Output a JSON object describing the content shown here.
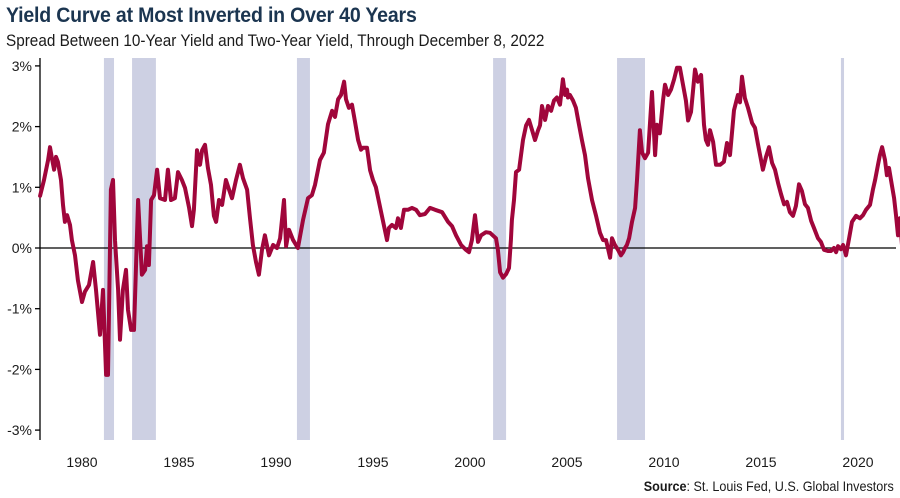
{
  "header": {
    "title": "Yield Curve at Most Inverted in Over 40 Years",
    "subtitle": "Spread Between 10-Year Yield and Two-Year Yield, Through December 8, 2022"
  },
  "footer": {
    "source_label": "Source",
    "source_text": ": St. Louis Fed, U.S. Global Investors"
  },
  "colors": {
    "line": "#a0063b",
    "recession": "#cdd0e3",
    "axis": "#000000",
    "title": "#1b3550"
  },
  "chart_data": {
    "type": "line",
    "title": "Yield Curve at Most Inverted in Over 40 Years",
    "subtitle": "Spread Between 10-Year Yield and Two-Year Yield, Through December 8, 2022",
    "xlabel": "",
    "ylabel": "",
    "xlim": [
      1977.84,
      2022.94
    ],
    "ylim": [
      -3.2,
      3.1
    ],
    "x_ticks": [
      1980,
      1985,
      1990,
      1995,
      2000,
      2005,
      2010,
      2015,
      2020
    ],
    "x_tick_labels": [
      "1980",
      "1985",
      "1990",
      "1995",
      "2000",
      "2005",
      "2010",
      "2015",
      "2020"
    ],
    "y_ticks": [
      3,
      2,
      1,
      0,
      -1,
      -2,
      -3
    ],
    "y_tick_labels": [
      "3%",
      "2%",
      "1%",
      "0%",
      "-1%",
      "-2%",
      "-3%"
    ],
    "grid": false,
    "zero_line": true,
    "legend": "none",
    "shaded_periods": [
      {
        "start": 1981.13,
        "end": 1981.65
      },
      {
        "start": 1982.58,
        "end": 1983.81
      },
      {
        "start": 1991.08,
        "end": 1991.75
      },
      {
        "start": 2001.19,
        "end": 2001.86
      },
      {
        "start": 2007.58,
        "end": 2009.02
      },
      {
        "start": 2019.12,
        "end": 2019.28
      }
    ],
    "series": [
      {
        "name": "10-Year minus 2-Year Treasury Spread (%)",
        "points": [
          [
            1977.84,
            0.86
          ],
          [
            1978.04,
            1.12
          ],
          [
            1978.25,
            1.45
          ],
          [
            1978.35,
            1.66
          ],
          [
            1978.45,
            1.48
          ],
          [
            1978.56,
            1.29
          ],
          [
            1978.66,
            1.5
          ],
          [
            1978.76,
            1.42
          ],
          [
            1978.92,
            1.12
          ],
          [
            1979.02,
            0.71
          ],
          [
            1979.12,
            0.43
          ],
          [
            1979.23,
            0.54
          ],
          [
            1979.38,
            0.38
          ],
          [
            1979.48,
            0.13
          ],
          [
            1979.64,
            -0.12
          ],
          [
            1979.79,
            -0.53
          ],
          [
            1980.0,
            -0.89
          ],
          [
            1980.15,
            -0.72
          ],
          [
            1980.36,
            -0.61
          ],
          [
            1980.57,
            -0.23
          ],
          [
            1980.72,
            -0.69
          ],
          [
            1980.93,
            -1.43
          ],
          [
            1981.08,
            -0.69
          ],
          [
            1981.24,
            -2.09
          ],
          [
            1981.34,
            -2.09
          ],
          [
            1981.49,
            0.96
          ],
          [
            1981.6,
            1.12
          ],
          [
            1981.7,
            0.13
          ],
          [
            1981.86,
            -0.69
          ],
          [
            1981.96,
            -1.51
          ],
          [
            1982.11,
            -0.69
          ],
          [
            1982.27,
            -0.36
          ],
          [
            1982.37,
            -1.02
          ],
          [
            1982.53,
            -1.35
          ],
          [
            1982.68,
            -1.35
          ],
          [
            1982.89,
            0.79
          ],
          [
            1983.09,
            -0.44
          ],
          [
            1983.25,
            -0.36
          ],
          [
            1983.35,
            0.03
          ],
          [
            1983.45,
            -0.28
          ],
          [
            1983.56,
            0.79
          ],
          [
            1983.71,
            0.87
          ],
          [
            1983.87,
            1.29
          ],
          [
            1984.02,
            0.82
          ],
          [
            1984.28,
            0.79
          ],
          [
            1984.43,
            1.29
          ],
          [
            1984.59,
            0.79
          ],
          [
            1984.79,
            0.82
          ],
          [
            1984.95,
            1.25
          ],
          [
            1985.15,
            1.12
          ],
          [
            1985.31,
            0.99
          ],
          [
            1985.52,
            0.66
          ],
          [
            1985.67,
            0.36
          ],
          [
            1985.77,
            0.63
          ],
          [
            1985.93,
            1.61
          ],
          [
            1986.08,
            1.37
          ],
          [
            1986.19,
            1.61
          ],
          [
            1986.34,
            1.7
          ],
          [
            1986.49,
            1.32
          ],
          [
            1986.65,
            1.04
          ],
          [
            1986.8,
            0.53
          ],
          [
            1986.91,
            0.43
          ],
          [
            1987.06,
            0.79
          ],
          [
            1987.22,
            0.71
          ],
          [
            1987.42,
            1.12
          ],
          [
            1987.58,
            0.96
          ],
          [
            1987.73,
            0.82
          ],
          [
            1987.94,
            1.12
          ],
          [
            1988.14,
            1.37
          ],
          [
            1988.3,
            1.15
          ],
          [
            1988.51,
            0.96
          ],
          [
            1988.66,
            0.49
          ],
          [
            1988.81,
            0.05
          ],
          [
            1988.97,
            -0.23
          ],
          [
            1989.12,
            -0.44
          ],
          [
            1989.28,
            -0.03
          ],
          [
            1989.43,
            0.21
          ],
          [
            1989.64,
            -0.12
          ],
          [
            1989.85,
            0.05
          ],
          [
            1990.05,
            0.0
          ],
          [
            1990.21,
            0.16
          ],
          [
            1990.41,
            0.79
          ],
          [
            1990.52,
            0.03
          ],
          [
            1990.67,
            0.3
          ],
          [
            1990.88,
            0.13
          ],
          [
            1991.13,
            0.0
          ],
          [
            1991.39,
            0.46
          ],
          [
            1991.65,
            0.82
          ],
          [
            1991.85,
            0.87
          ],
          [
            1992.01,
            1.04
          ],
          [
            1992.27,
            1.45
          ],
          [
            1992.47,
            1.57
          ],
          [
            1992.68,
            2.04
          ],
          [
            1992.89,
            2.26
          ],
          [
            1993.04,
            2.16
          ],
          [
            1993.2,
            2.45
          ],
          [
            1993.35,
            2.52
          ],
          [
            1993.51,
            2.74
          ],
          [
            1993.61,
            2.45
          ],
          [
            1993.76,
            2.31
          ],
          [
            1993.92,
            2.36
          ],
          [
            1994.07,
            2.08
          ],
          [
            1994.23,
            1.78
          ],
          [
            1994.38,
            1.62
          ],
          [
            1994.48,
            1.65
          ],
          [
            1994.69,
            1.65
          ],
          [
            1994.85,
            1.28
          ],
          [
            1995.0,
            1.12
          ],
          [
            1995.15,
            1.0
          ],
          [
            1995.72,
            0.13
          ],
          [
            1995.82,
            0.33
          ],
          [
            1995.98,
            0.38
          ],
          [
            1996.18,
            0.33
          ],
          [
            1996.29,
            0.49
          ],
          [
            1996.44,
            0.33
          ],
          [
            1996.6,
            0.63
          ],
          [
            1996.8,
            0.63
          ],
          [
            1997.01,
            0.66
          ],
          [
            1997.22,
            0.63
          ],
          [
            1997.42,
            0.54
          ],
          [
            1997.68,
            0.56
          ],
          [
            1997.94,
            0.66
          ],
          [
            1998.2,
            0.63
          ],
          [
            1998.56,
            0.59
          ],
          [
            1998.87,
            0.43
          ],
          [
            1999.07,
            0.36
          ],
          [
            1999.28,
            0.21
          ],
          [
            1999.54,
            0.05
          ],
          [
            1999.79,
            -0.03
          ],
          [
            1999.95,
            -0.07
          ],
          [
            2000.1,
            0.13
          ],
          [
            2000.26,
            0.54
          ],
          [
            2000.41,
            0.1
          ],
          [
            2000.57,
            0.21
          ],
          [
            2000.82,
            0.26
          ],
          [
            2001.03,
            0.25
          ],
          [
            2001.34,
            0.16
          ],
          [
            2001.44,
            -0.03
          ],
          [
            2001.55,
            -0.4
          ],
          [
            2001.7,
            -0.49
          ],
          [
            2001.86,
            -0.43
          ],
          [
            2002.01,
            -0.33
          ],
          [
            2002.11,
            0.13
          ],
          [
            2002.16,
            0.46
          ],
          [
            2002.27,
            0.79
          ],
          [
            2002.37,
            1.25
          ],
          [
            2002.53,
            1.29
          ],
          [
            2002.73,
            1.78
          ],
          [
            2002.89,
            2.02
          ],
          [
            2003.04,
            2.11
          ],
          [
            2003.2,
            1.94
          ],
          [
            2003.35,
            1.78
          ],
          [
            2003.51,
            1.94
          ],
          [
            2003.61,
            2.02
          ],
          [
            2003.71,
            2.34
          ],
          [
            2003.87,
            2.11
          ],
          [
            2004.02,
            2.34
          ],
          [
            2004.18,
            2.26
          ],
          [
            2004.33,
            2.43
          ],
          [
            2004.48,
            2.48
          ],
          [
            2004.64,
            2.36
          ],
          [
            2004.79,
            2.78
          ],
          [
            2004.9,
            2.52
          ],
          [
            2005.0,
            2.61
          ],
          [
            2005.05,
            2.48
          ],
          [
            2005.15,
            2.52
          ],
          [
            2005.31,
            2.43
          ],
          [
            2005.46,
            2.31
          ],
          [
            2005.57,
            2.11
          ],
          [
            2005.77,
            1.78
          ],
          [
            2005.93,
            1.53
          ],
          [
            2006.08,
            1.15
          ],
          [
            2006.29,
            0.79
          ],
          [
            2006.49,
            0.54
          ],
          [
            2006.7,
            0.25
          ],
          [
            2006.86,
            0.13
          ],
          [
            2007.01,
            0.13
          ],
          [
            2007.11,
            0.0
          ],
          [
            2007.22,
            -0.16
          ],
          [
            2007.32,
            0.16
          ],
          [
            2007.47,
            0.05
          ],
          [
            2007.63,
            -0.03
          ],
          [
            2007.78,
            -0.12
          ],
          [
            2007.89,
            -0.07
          ],
          [
            2007.99,
            0.0
          ],
          [
            2008.09,
            0.05
          ],
          [
            2008.2,
            0.16
          ],
          [
            2008.35,
            0.43
          ],
          [
            2008.51,
            0.66
          ],
          [
            2008.61,
            1.12
          ],
          [
            2008.76,
            1.94
          ],
          [
            2008.87,
            1.57
          ],
          [
            2009.02,
            1.48
          ],
          [
            2009.18,
            1.57
          ],
          [
            2009.38,
            2.57
          ],
          [
            2009.54,
            1.53
          ],
          [
            2009.64,
            2.03
          ],
          [
            2009.79,
            1.89
          ],
          [
            2009.95,
            2.43
          ],
          [
            2010.05,
            2.69
          ],
          [
            2010.21,
            2.52
          ],
          [
            2010.36,
            2.61
          ],
          [
            2010.52,
            2.78
          ],
          [
            2010.67,
            2.97
          ],
          [
            2010.82,
            2.97
          ],
          [
            2010.98,
            2.69
          ],
          [
            2011.13,
            2.43
          ],
          [
            2011.24,
            2.1
          ],
          [
            2011.39,
            2.24
          ],
          [
            2011.49,
            2.57
          ],
          [
            2011.6,
            2.94
          ],
          [
            2011.75,
            2.74
          ],
          [
            2011.91,
            2.85
          ],
          [
            2012.06,
            2.03
          ],
          [
            2012.16,
            1.78
          ],
          [
            2012.27,
            1.7
          ],
          [
            2012.37,
            1.94
          ],
          [
            2012.53,
            1.75
          ],
          [
            2012.68,
            1.37
          ],
          [
            2012.89,
            1.37
          ],
          [
            2013.09,
            1.42
          ],
          [
            2013.25,
            1.73
          ],
          [
            2013.4,
            1.53
          ],
          [
            2013.61,
            2.27
          ],
          [
            2013.81,
            2.52
          ],
          [
            2013.92,
            2.4
          ],
          [
            2014.02,
            2.82
          ],
          [
            2014.17,
            2.47
          ],
          [
            2014.33,
            2.31
          ],
          [
            2014.54,
            2.06
          ],
          [
            2014.69,
            1.98
          ],
          [
            2014.85,
            1.7
          ],
          [
            2015.1,
            1.29
          ],
          [
            2015.26,
            1.5
          ],
          [
            2015.41,
            1.66
          ],
          [
            2015.57,
            1.4
          ],
          [
            2015.72,
            1.29
          ],
          [
            2015.88,
            1.07
          ],
          [
            2016.03,
            0.89
          ],
          [
            2016.19,
            0.72
          ],
          [
            2016.34,
            0.76
          ],
          [
            2016.49,
            0.59
          ],
          [
            2016.65,
            0.53
          ],
          [
            2016.8,
            0.69
          ],
          [
            2016.96,
            1.05
          ],
          [
            2017.11,
            0.94
          ],
          [
            2017.27,
            0.72
          ],
          [
            2017.42,
            0.66
          ],
          [
            2017.58,
            0.45
          ],
          [
            2017.73,
            0.33
          ],
          [
            2017.94,
            0.16
          ],
          [
            2018.09,
            0.1
          ],
          [
            2018.25,
            -0.03
          ],
          [
            2018.45,
            -0.05
          ],
          [
            2018.61,
            -0.05
          ],
          [
            2018.76,
            0.0
          ],
          [
            2018.87,
            -0.07
          ],
          [
            2018.97,
            0.03
          ],
          [
            2019.12,
            -0.02
          ],
          [
            2019.23,
            0.05
          ],
          [
            2019.38,
            -0.12
          ],
          [
            2019.54,
            0.16
          ],
          [
            2019.69,
            0.43
          ],
          [
            2019.9,
            0.53
          ],
          [
            2020.1,
            0.49
          ],
          [
            2020.26,
            0.54
          ],
          [
            2020.41,
            0.63
          ],
          [
            2020.62,
            0.71
          ],
          [
            2020.77,
            0.96
          ],
          [
            2020.88,
            1.12
          ],
          [
            2021.03,
            1.37
          ],
          [
            2021.13,
            1.53
          ],
          [
            2021.24,
            1.66
          ],
          [
            2021.39,
            1.45
          ],
          [
            2021.49,
            1.2
          ],
          [
            2021.6,
            1.32
          ],
          [
            2021.7,
            1.12
          ],
          [
            2021.86,
            0.82
          ],
          [
            2021.96,
            0.54
          ],
          [
            2022.06,
            0.21
          ],
          [
            2022.16,
            0.49
          ],
          [
            2022.27,
            0.05
          ],
          [
            2022.37,
            -0.2
          ],
          [
            2022.53,
            -0.36
          ],
          [
            2022.68,
            -0.53
          ],
          [
            2022.79,
            -0.66
          ],
          [
            2022.89,
            -0.89
          ]
        ]
      }
    ]
  }
}
